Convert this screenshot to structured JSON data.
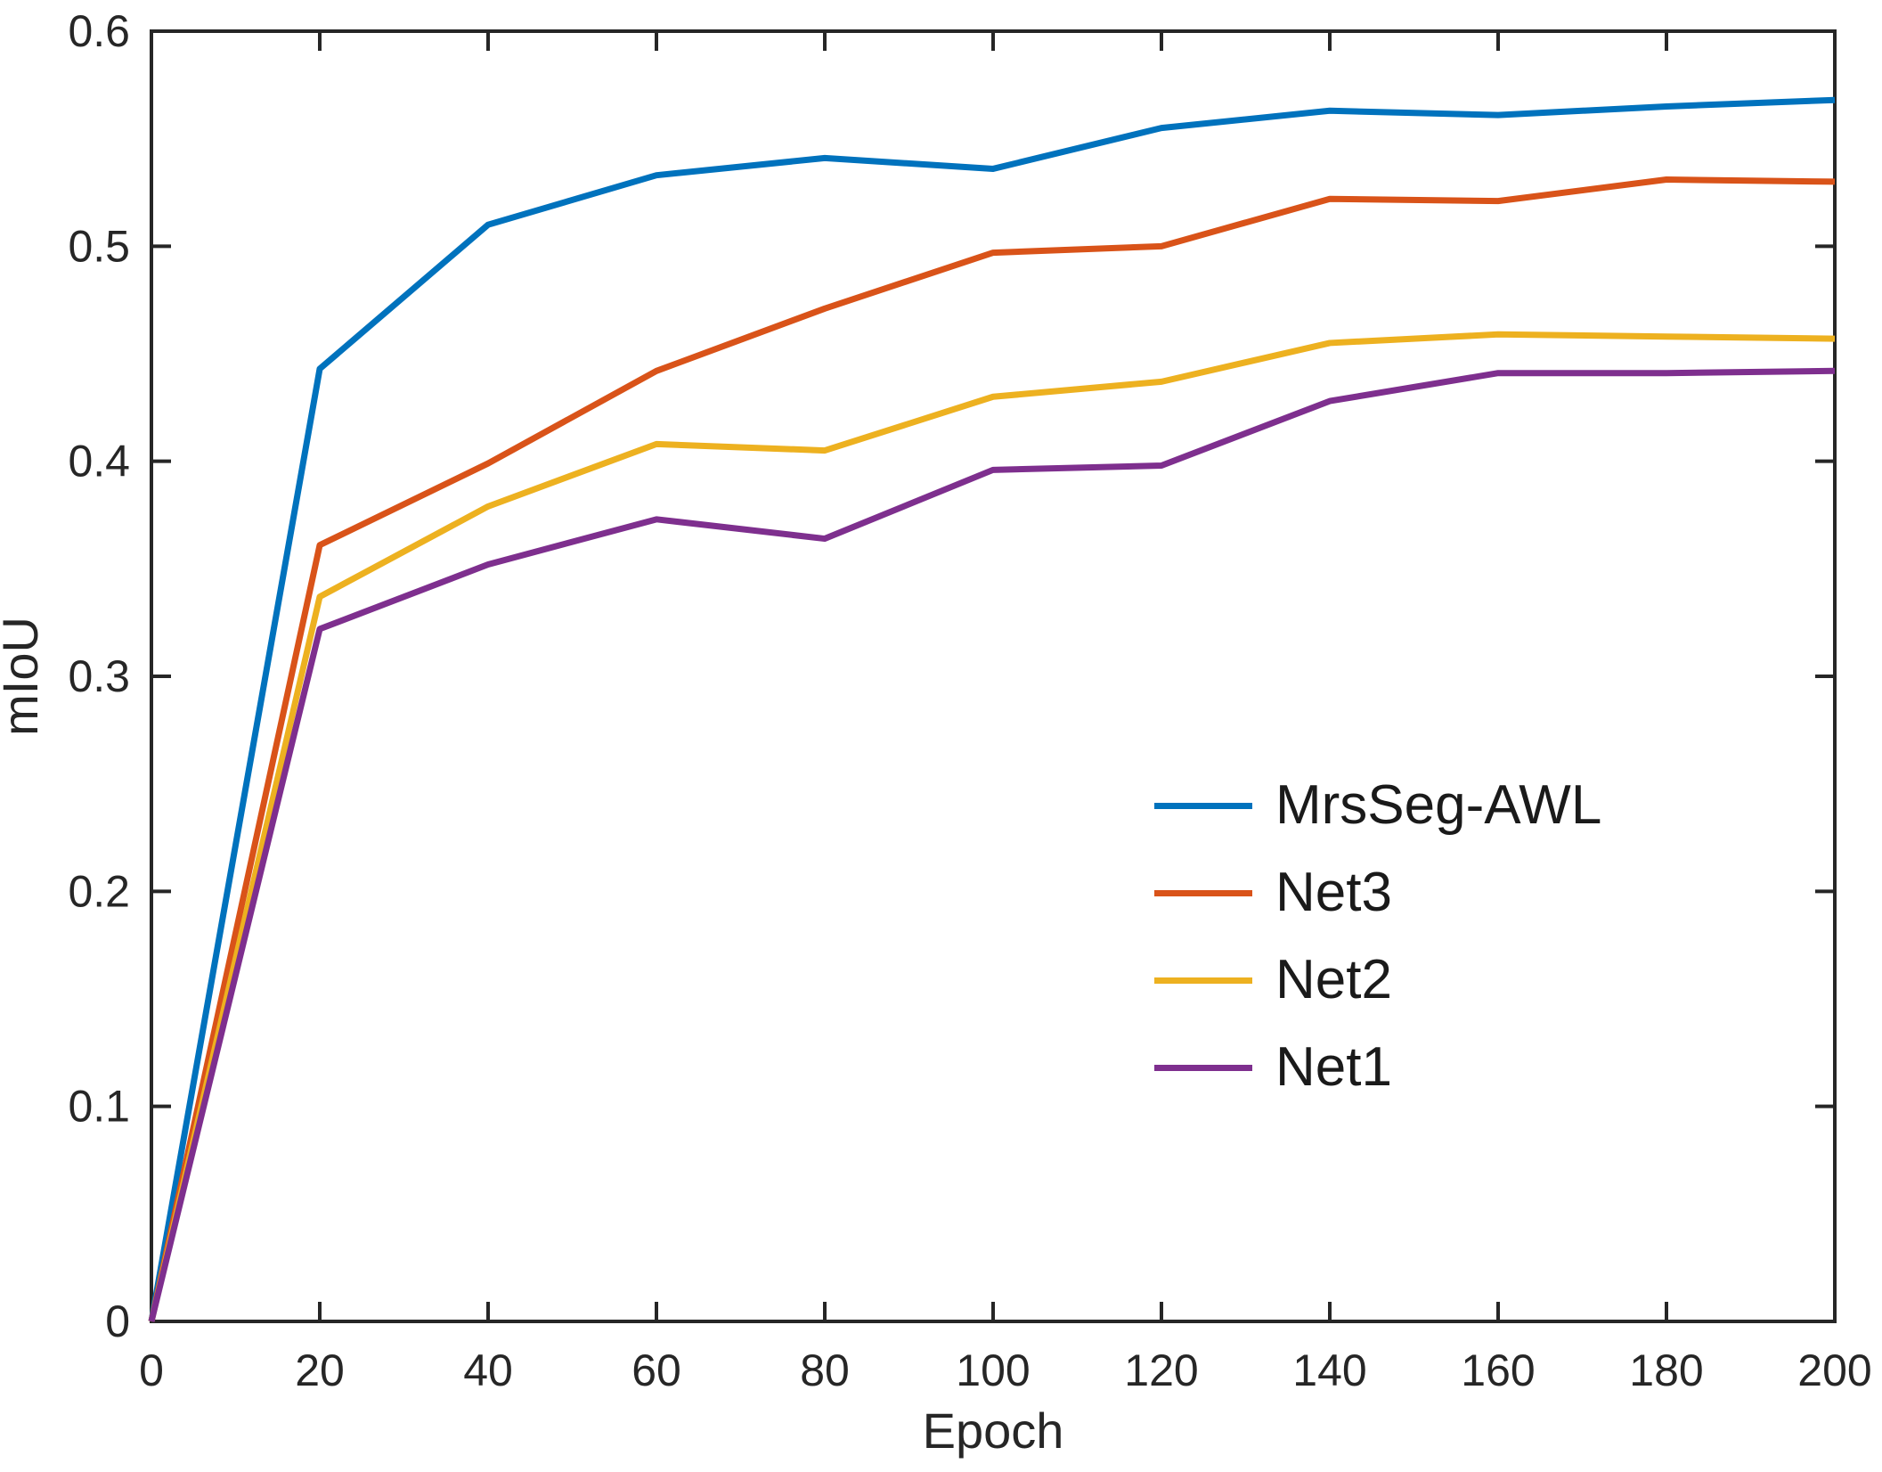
{
  "figure": {
    "background": "#ffffff",
    "axis_color": "#262626",
    "text_color": "#1a1a1a"
  },
  "chart_data": {
    "type": "line",
    "title": "",
    "xlabel": "Epoch",
    "ylabel": "mIoU",
    "xlim": [
      0,
      200
    ],
    "ylim": [
      0,
      0.6
    ],
    "xticks": [
      "0",
      "20",
      "40",
      "60",
      "80",
      "100",
      "120",
      "140",
      "160",
      "180",
      "200"
    ],
    "yticks": [
      "0",
      "0.1",
      "0.2",
      "0.3",
      "0.4",
      "0.5",
      "0.6"
    ],
    "grid": false,
    "legend_position": "inside-lower-right",
    "x": [
      0,
      20,
      40,
      60,
      80,
      100,
      120,
      140,
      160,
      180,
      200
    ],
    "series": [
      {
        "name": "MrsSeg-AWL",
        "color": "#0072BD",
        "values": [
          0,
          0.443,
          0.51,
          0.533,
          0.541,
          0.536,
          0.555,
          0.563,
          0.561,
          0.565,
          0.568
        ]
      },
      {
        "name": "Net3",
        "color": "#D95319",
        "values": [
          0,
          0.361,
          0.399,
          0.442,
          0.471,
          0.497,
          0.5,
          0.522,
          0.521,
          0.531,
          0.53
        ]
      },
      {
        "name": "Net2",
        "color": "#EDB120",
        "values": [
          0,
          0.337,
          0.379,
          0.408,
          0.405,
          0.43,
          0.437,
          0.455,
          0.459,
          0.458,
          0.457
        ]
      },
      {
        "name": "Net1",
        "color": "#7E2F8E",
        "values": [
          0,
          0.322,
          0.352,
          0.373,
          0.364,
          0.396,
          0.398,
          0.428,
          0.441,
          0.441,
          0.442
        ]
      }
    ]
  }
}
